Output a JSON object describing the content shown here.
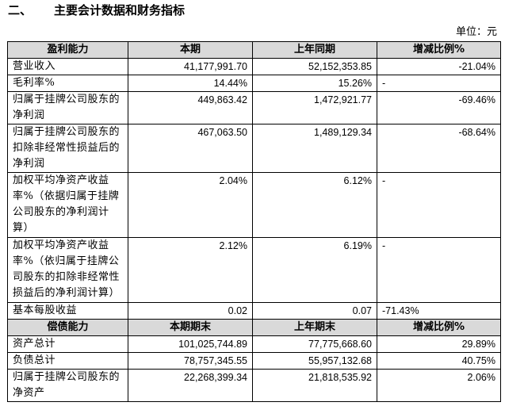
{
  "heading": {
    "number": "二、",
    "title": "主要会计数据和财务指标"
  },
  "unit": "单位：元",
  "profit": {
    "header": [
      "盈利能力",
      "本期",
      "上年同期",
      "增减比例%"
    ],
    "rows": [
      {
        "item": "营业收入",
        "current": "41,177,991.70",
        "previous": "52,152,353.85",
        "change": "-21.04%",
        "align": "right"
      },
      {
        "item": "毛利率%",
        "current": "14.44%",
        "previous": "15.26%",
        "change": "-",
        "align": "left"
      },
      {
        "item": "归属于挂牌公司股东的净利润",
        "current": "449,863.42",
        "previous": "1,472,921.77",
        "change": "-69.46%",
        "align": "right"
      },
      {
        "item": "归属于挂牌公司股东的扣除非经常性损益后的净利润",
        "current": "467,063.50",
        "previous": "1,489,129.34",
        "change": "-68.64%",
        "align": "right"
      },
      {
        "item": "加权平均净资产收益率%（依据归属于挂牌公司股东的净利润计算）",
        "current": "2.04%",
        "previous": "6.12%",
        "change": "-",
        "align": "left"
      },
      {
        "item": "加权平均净资产收益率%（依归属于挂牌公司股东的扣除非经常性损益后的净利润计算）",
        "current": "2.12%",
        "previous": "6.19%",
        "change": "-",
        "align": "left"
      },
      {
        "item": "基本每股收益",
        "current": "0.02",
        "previous": "0.07",
        "change": "-71.43%",
        "align": "left"
      }
    ]
  },
  "solvency": {
    "header": [
      "偿债能力",
      "本期期末",
      "上年期末",
      "增减比例%"
    ],
    "rows": [
      {
        "item": "资产总计",
        "current": "101,025,744.89",
        "previous": "77,775,668.60",
        "change": "29.89%",
        "align": "right"
      },
      {
        "item": "负债总计",
        "current": "78,757,345.55",
        "previous": "55,957,132.68",
        "change": "40.75%",
        "align": "right"
      },
      {
        "item": "归属于挂牌公司股东的净资产",
        "current": "22,268,399.34",
        "previous": "21,818,535.92",
        "change": "2.06%",
        "align": "right"
      }
    ]
  }
}
